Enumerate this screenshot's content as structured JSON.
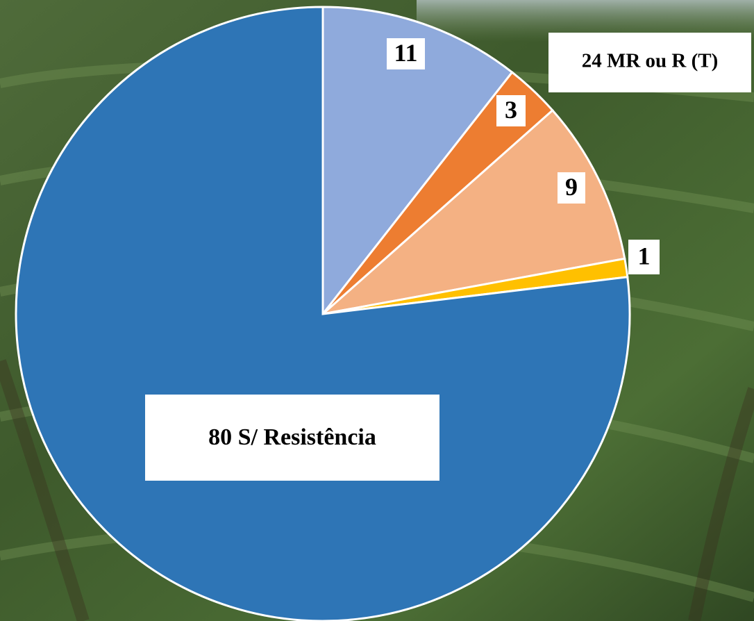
{
  "chart_data": {
    "type": "pie",
    "values": [
      11,
      3,
      9,
      1,
      80
    ],
    "value_labels": [
      "11",
      "3",
      "9",
      "1",
      "80 S/ Resistência"
    ],
    "colors": [
      "#8faadc",
      "#ed7d31",
      "#f4b183",
      "#ffc000",
      "#2e75b6"
    ],
    "annotation": "24 MR ou R (T)"
  }
}
